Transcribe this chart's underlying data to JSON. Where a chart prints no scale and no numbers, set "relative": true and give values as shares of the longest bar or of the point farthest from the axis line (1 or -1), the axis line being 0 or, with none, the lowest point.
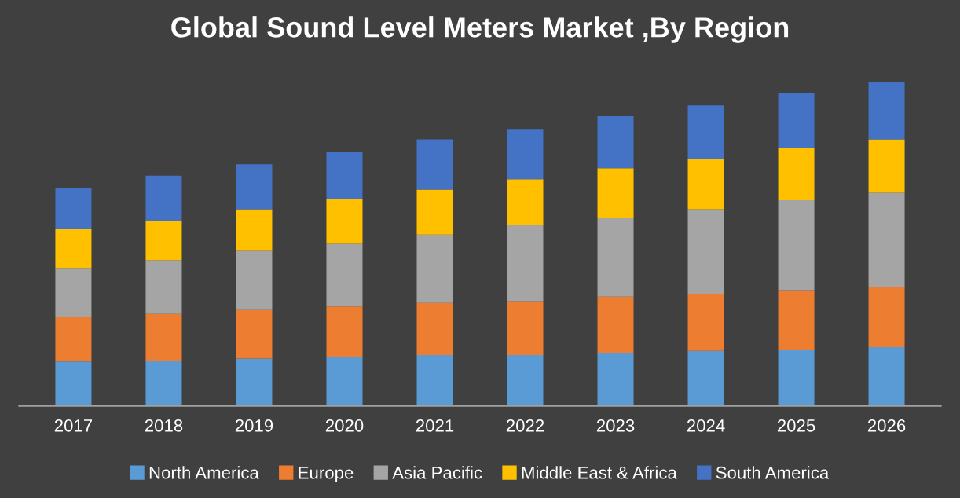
{
  "chart_data": {
    "type": "bar",
    "title": "Global Sound Level Meters Market ,By Region",
    "stacked": true,
    "relative": true,
    "legend": "bottom",
    "grid": false,
    "categories": [
      "2017",
      "2018",
      "2019",
      "2020",
      "2021",
      "2022",
      "2023",
      "2024",
      "2025",
      "2026"
    ],
    "series": [
      {
        "name": "North America",
        "color": "#5b9bd5",
        "values": [
          0.137,
          0.14,
          0.146,
          0.152,
          0.157,
          0.157,
          0.163,
          0.17,
          0.174,
          0.181
        ]
      },
      {
        "name": "Europe",
        "color": "#ed7d31",
        "values": [
          0.137,
          0.144,
          0.15,
          0.155,
          0.161,
          0.166,
          0.174,
          0.176,
          0.183,
          0.187
        ]
      },
      {
        "name": "Asia Pacific",
        "color": "#a5a5a5",
        "values": [
          0.152,
          0.166,
          0.185,
          0.196,
          0.211,
          0.235,
          0.244,
          0.261,
          0.279,
          0.29
        ]
      },
      {
        "name": "Middle East & Africa",
        "color": "#ffc000",
        "values": [
          0.12,
          0.122,
          0.126,
          0.137,
          0.139,
          0.142,
          0.153,
          0.155,
          0.159,
          0.165
        ]
      },
      {
        "name": "South America",
        "color": "#4472c4",
        "values": [
          0.128,
          0.139,
          0.139,
          0.144,
          0.155,
          0.155,
          0.161,
          0.166,
          0.172,
          0.177
        ]
      }
    ]
  }
}
